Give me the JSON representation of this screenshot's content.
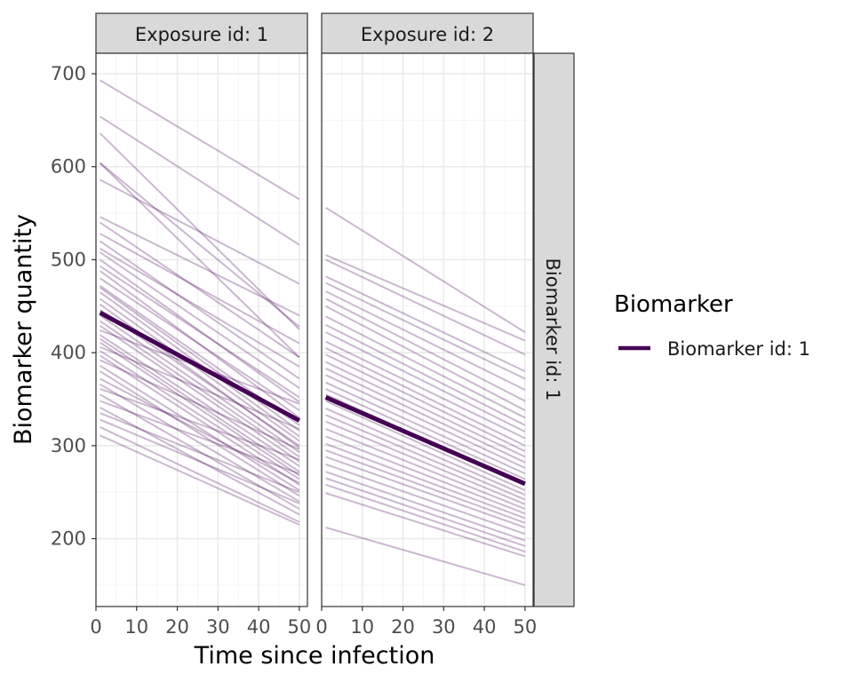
{
  "colors": {
    "line": "#440154",
    "strip_fill": "#d9d9d9",
    "grid_major": "#ebebeb",
    "grid_minor": "#f4f4f4",
    "border": "#333333",
    "tick_text": "#4d4d4d"
  },
  "chart_data": {
    "type": "line",
    "xlabel": "Time since infection",
    "ylabel": "Biomarker quantity",
    "xlim": [
      0,
      52
    ],
    "ylim": [
      127,
      722
    ],
    "x_ticks": [
      "0",
      "10",
      "20",
      "30",
      "40",
      "50"
    ],
    "y_ticks": [
      "200",
      "300",
      "400",
      "500",
      "600",
      "700"
    ],
    "row_strip": "Biomarker id: 1",
    "legend": {
      "title": "Biomarker",
      "position": "right",
      "entries": [
        "Biomarker id: 1"
      ]
    },
    "panels": [
      {
        "strip": "Exposure id: 1",
        "mean_line": {
          "name": "Biomarker id: 1",
          "x": [
            1,
            50
          ],
          "y": [
            443,
            327
          ]
        },
        "individual_lines": {
          "x": [
            1,
            50
          ],
          "start": [
            693,
            654,
            636,
            604,
            604,
            586,
            546,
            540,
            528,
            520,
            512,
            508,
            500,
            493,
            488,
            480,
            472,
            470,
            465,
            458,
            452,
            446,
            440,
            434,
            429,
            424,
            419,
            415,
            411,
            406,
            402,
            397,
            392,
            386,
            380,
            372,
            366,
            361,
            355,
            348,
            341,
            335,
            328,
            320,
            311
          ],
          "end": [
            565,
            516,
            425,
            395,
            428,
            474,
            440,
            395,
            410,
            372,
            385,
            362,
            347,
            352,
            330,
            338,
            322,
            316,
            310,
            305,
            298,
            300,
            293,
            288,
            283,
            345,
            278,
            272,
            268,
            318,
            264,
            258,
            296,
            252,
            246,
            260,
            240,
            285,
            232,
            270,
            226,
            250,
            238,
            218,
            215
          ]
        }
      },
      {
        "strip": "Exposure id: 2",
        "mean_line": {
          "name": "Biomarker id: 1",
          "x": [
            1,
            50
          ],
          "y": [
            352,
            259
          ]
        },
        "individual_lines": {
          "x": [
            1,
            50
          ],
          "start": [
            556,
            505,
            500,
            482,
            475,
            466,
            458,
            450,
            439,
            430,
            422,
            412,
            405,
            398,
            390,
            383,
            376,
            368,
            361,
            355,
            348,
            340,
            333,
            326,
            318,
            310,
            302,
            295,
            288,
            280,
            272,
            265,
            258,
            249,
            212
          ],
          "end": [
            422,
            413,
            398,
            380,
            372,
            360,
            348,
            338,
            330,
            322,
            315,
            308,
            300,
            294,
            288,
            282,
            276,
            270,
            264,
            258,
            252,
            247,
            242,
            237,
            232,
            227,
            222,
            217,
            212,
            205,
            198,
            192,
            186,
            181,
            150
          ]
        }
      }
    ]
  }
}
